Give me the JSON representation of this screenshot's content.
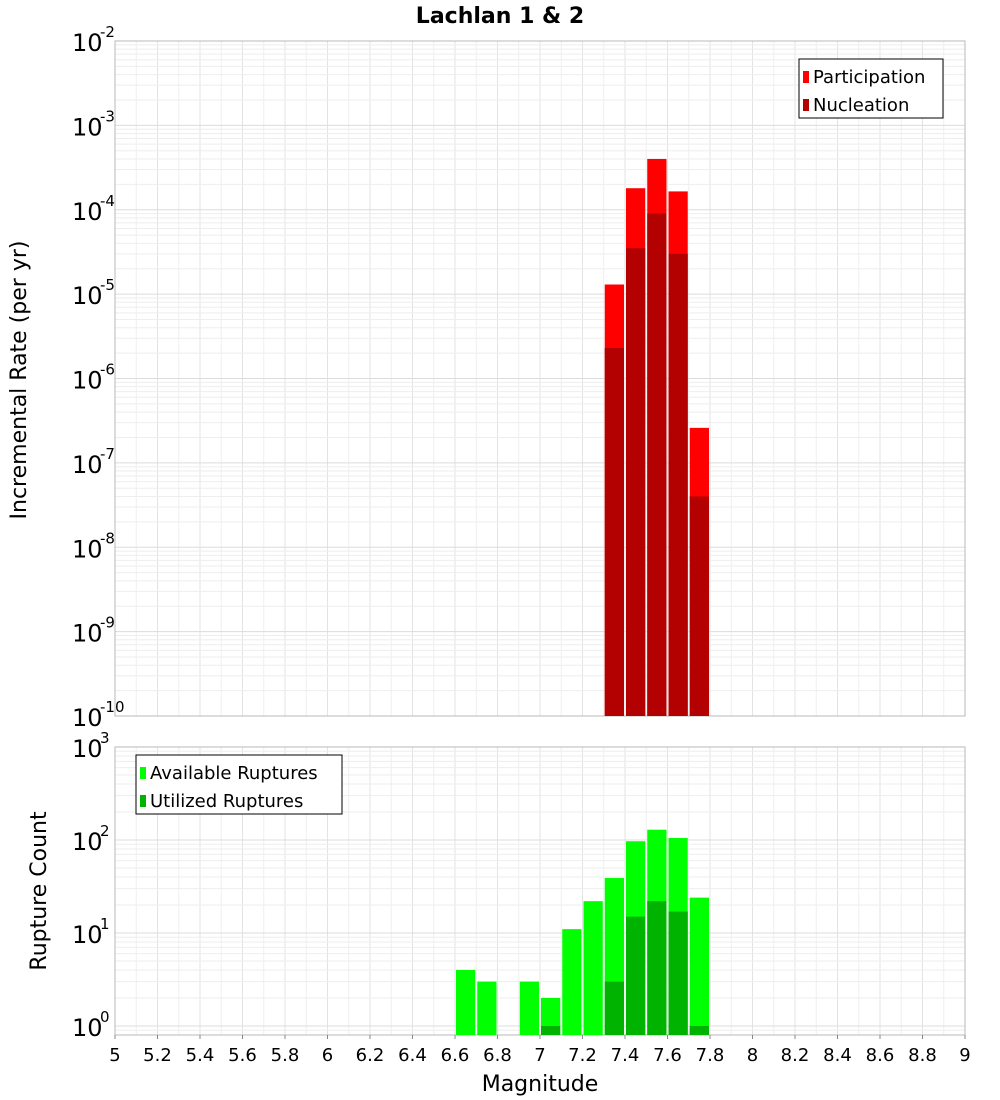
{
  "chart_data": [
    {
      "type": "bar",
      "title": "Lachlan 1 & 2",
      "xlabel": "Magnitude",
      "ylabel": "Incremental Rate (per yr)",
      "y_scale": "log",
      "ylim": [
        1e-10,
        0.01
      ],
      "xlim": [
        5,
        9
      ],
      "bar_width": 0.1,
      "legend_position": "top-right",
      "grid": true,
      "y_tick_bases": [
        "10",
        "10",
        "10",
        "10",
        "10",
        "10",
        "10",
        "10",
        "10"
      ],
      "y_tick_exponents": [
        "-10",
        "-9",
        "-8",
        "-7",
        "-6",
        "-5",
        "-4",
        "-3",
        "-2"
      ],
      "series": [
        {
          "name": "Participation",
          "color": "#ff0000",
          "x": [
            7.35,
            7.45,
            7.55,
            7.65,
            7.75
          ],
          "values": [
            1.3e-05,
            0.00018,
            0.0004,
            0.000165,
            2.6e-07
          ]
        },
        {
          "name": "Nucleation",
          "color": "#b30000",
          "x": [
            7.35,
            7.45,
            7.55,
            7.65,
            7.75
          ],
          "values": [
            2.3e-06,
            3.5e-05,
            9e-05,
            3e-05,
            4e-08
          ]
        }
      ]
    },
    {
      "type": "bar",
      "xlabel": "Magnitude",
      "ylabel": "Rupture Count",
      "y_scale": "log",
      "ylim": [
        0.8,
        1000
      ],
      "xlim": [
        5,
        9
      ],
      "bar_width": 0.1,
      "legend_position": "top-left",
      "grid": true,
      "x_ticks": [
        "5",
        "5.2",
        "5.4",
        "5.6",
        "5.8",
        "6",
        "6.2",
        "6.4",
        "6.6",
        "6.8",
        "7",
        "7.2",
        "7.4",
        "7.6",
        "7.8",
        "8",
        "8.2",
        "8.4",
        "8.6",
        "8.8",
        "9"
      ],
      "y_tick_bases": [
        "10",
        "10",
        "10",
        "10"
      ],
      "y_tick_exponents": [
        "0",
        "1",
        "2",
        "3"
      ],
      "series": [
        {
          "name": "Available Ruptures",
          "color": "#00ff00",
          "x": [
            6.65,
            6.75,
            6.95,
            7.05,
            7.15,
            7.25,
            7.35,
            7.45,
            7.55,
            7.65,
            7.75
          ],
          "values": [
            4,
            3,
            3,
            2,
            11,
            22,
            39,
            97,
            129,
            105,
            24
          ]
        },
        {
          "name": "Utilized Ruptures",
          "color": "#00b300",
          "x": [
            7.05,
            7.35,
            7.45,
            7.55,
            7.65,
            7.75
          ],
          "values": [
            1,
            3,
            15,
            22,
            17,
            1
          ]
        }
      ]
    }
  ]
}
